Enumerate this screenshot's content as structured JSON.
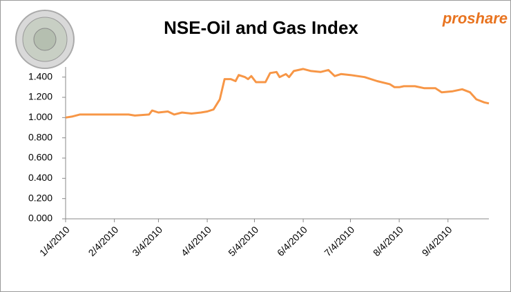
{
  "chart_data": {
    "type": "line",
    "title": "NSE-Oil and Gas Index",
    "logo_text": "proshare",
    "x": [
      "2010-01-04",
      "2010-01-08",
      "2010-01-13",
      "2010-02-04",
      "2010-02-13",
      "2010-02-17",
      "2010-02-26",
      "2010-02-28",
      "2010-03-04",
      "2010-03-10",
      "2010-03-14",
      "2010-03-19",
      "2010-03-25",
      "2010-03-31",
      "2010-04-04",
      "2010-04-08",
      "2010-04-12",
      "2010-04-15",
      "2010-04-19",
      "2010-04-22",
      "2010-04-24",
      "2010-04-28",
      "2010-04-30",
      "2010-05-02",
      "2010-05-05",
      "2010-05-11",
      "2010-05-14",
      "2010-05-18",
      "2010-05-20",
      "2010-05-24",
      "2010-05-26",
      "2010-05-29",
      "2010-06-04",
      "2010-06-09",
      "2010-06-15",
      "2010-06-20",
      "2010-06-24",
      "2010-06-28",
      "2010-07-04",
      "2010-07-13",
      "2010-07-21",
      "2010-07-29",
      "2010-08-01",
      "2010-08-04",
      "2010-08-07",
      "2010-08-14",
      "2010-08-20",
      "2010-08-27",
      "2010-08-31",
      "2010-09-07",
      "2010-09-13",
      "2010-09-18",
      "2010-09-22",
      "2010-09-27",
      "2010-09-30"
    ],
    "series": [
      {
        "name": "NSE-Oil and Gas Index",
        "color": "#f79646",
        "values": [
          1.0,
          1.01,
          1.03,
          1.03,
          1.03,
          1.02,
          1.03,
          1.07,
          1.05,
          1.06,
          1.03,
          1.05,
          1.04,
          1.05,
          1.06,
          1.08,
          1.18,
          1.38,
          1.38,
          1.36,
          1.42,
          1.4,
          1.38,
          1.41,
          1.35,
          1.35,
          1.44,
          1.45,
          1.4,
          1.43,
          1.4,
          1.46,
          1.48,
          1.46,
          1.45,
          1.47,
          1.41,
          1.43,
          1.42,
          1.4,
          1.36,
          1.33,
          1.3,
          1.3,
          1.31,
          1.31,
          1.29,
          1.29,
          1.25,
          1.26,
          1.28,
          1.25,
          1.18,
          1.15,
          1.14
        ]
      }
    ],
    "xlim": [
      "2010-01-04",
      "2010-09-30"
    ],
    "xticks": [
      {
        "value": "2010-01-04",
        "label": "1/4/2010"
      },
      {
        "value": "2010-02-04",
        "label": "2/4/2010"
      },
      {
        "value": "2010-03-04",
        "label": "3/4/2010"
      },
      {
        "value": "2010-04-04",
        "label": "4/4/2010"
      },
      {
        "value": "2010-05-04",
        "label": "5/4/2010"
      },
      {
        "value": "2010-06-04",
        "label": "6/4/2010"
      },
      {
        "value": "2010-07-04",
        "label": "7/4/2010"
      },
      {
        "value": "2010-08-04",
        "label": "8/4/2010"
      },
      {
        "value": "2010-09-04",
        "label": "9/4/2010"
      }
    ],
    "ylim": [
      0,
      1.5
    ],
    "yticks": [
      {
        "value": 0,
        "label": "0.000"
      },
      {
        "value": 0.2,
        "label": "0.200"
      },
      {
        "value": 0.4,
        "label": "0.400"
      },
      {
        "value": 0.6,
        "label": "0.600"
      },
      {
        "value": 0.8,
        "label": "0.800"
      },
      {
        "value": 1.0,
        "label": "1.000"
      },
      {
        "value": 1.2,
        "label": "1.200"
      },
      {
        "value": 1.4,
        "label": "1.400"
      }
    ],
    "grid": false
  }
}
